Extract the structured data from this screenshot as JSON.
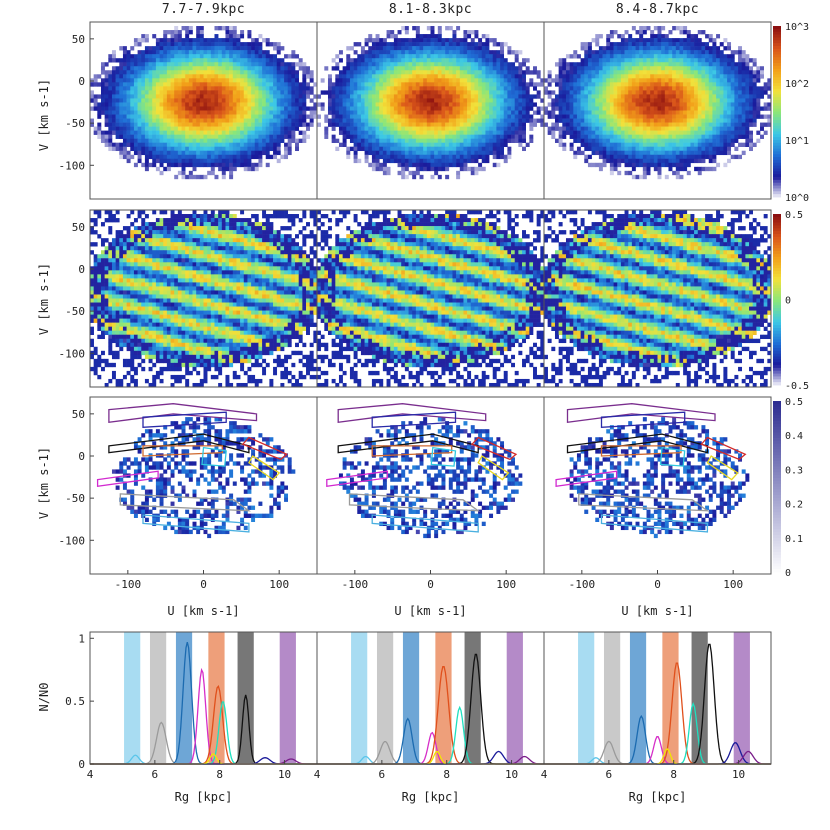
{
  "figure": {
    "column_titles": [
      "7.7-7.9kpc",
      "8.1-8.3kpc",
      "8.4-8.7kpc"
    ],
    "y_axis_label": "V [km s-1]",
    "x_axis_label_uv": "U [km s-1]",
    "x_axis_label_bottom": "Rg [kpc]",
    "y_axis_label_bottom": "N/N0"
  },
  "chart_data": [
    {
      "type": "heatmap",
      "panel": "density",
      "xlim": [
        -150,
        150
      ],
      "ylim": [
        -140,
        70
      ],
      "yticks": [
        -100,
        -50,
        0,
        50
      ],
      "colorbar": {
        "scale": "log",
        "range": [
          1,
          1500
        ],
        "ticks": [
          "10^0",
          "10^1",
          "10^2",
          "10^3"
        ]
      },
      "colormap": [
        "#ffffff",
        "#1a1a9c",
        "#1f6fd6",
        "#3cc8e6",
        "#8ae67a",
        "#f2e13a",
        "#f2a019",
        "#d9541a",
        "#8c1010"
      ],
      "columns": [
        "7.7-7.9kpc",
        "8.1-8.3kpc",
        "8.4-8.7kpc"
      ]
    },
    {
      "type": "heatmap",
      "panel": "density contrast",
      "xlim": [
        -150,
        150
      ],
      "ylim": [
        -140,
        70
      ],
      "yticks": [
        -100,
        -50,
        0,
        50
      ],
      "colorbar": {
        "scale": "linear",
        "range": [
          -0.5,
          0.5
        ],
        "ticks": [
          "-0.5",
          "0",
          "0.5"
        ]
      }
    },
    {
      "type": "heatmap",
      "panel": "significance with ridge contours",
      "xlim": [
        -150,
        150
      ],
      "ylim": [
        -140,
        70
      ],
      "xticks": [
        -100,
        0,
        100
      ],
      "yticks": [
        -100,
        -50,
        0,
        50
      ],
      "colorbar": {
        "scale": "linear",
        "range": [
          0,
          0.5
        ],
        "ticks": [
          "0",
          "0.1",
          "0.2",
          "0.3",
          "0.4",
          "0.5"
        ]
      }
    },
    {
      "type": "line",
      "panel": "guiding radius distribution",
      "xlim": [
        4,
        11
      ],
      "ylim": [
        0,
        1.05
      ],
      "xticks": [
        4,
        6,
        8,
        10
      ],
      "yticks": [
        0,
        0.5,
        1
      ],
      "bands": [
        {
          "x": 5.3,
          "color": "#a8dcf2"
        },
        {
          "x": 6.1,
          "color": "#c9c9c9"
        },
        {
          "x": 6.9,
          "color": "#6ea6d6"
        },
        {
          "x": 7.9,
          "color": "#ee9f7a"
        },
        {
          "x": 8.8,
          "color": "#777777"
        },
        {
          "x": 10.1,
          "color": "#b48ac8"
        }
      ],
      "series_colors": [
        "#5bc6ea",
        "#9a9a9a",
        "#1c6bb0",
        "#d62ec8",
        "#e0501c",
        "#1ee0c0",
        "#111111",
        "#1a1a9a",
        "#7a1e8a",
        "#f2e600"
      ],
      "panels": [
        {
          "series": [
            {
              "peak_x": 5.4,
              "peak_y": 0.07,
              "width": 0.12
            },
            {
              "peak_x": 6.2,
              "peak_y": 0.33,
              "width": 0.15
            },
            {
              "peak_x": 7.0,
              "peak_y": 0.97,
              "width": 0.13
            },
            {
              "peak_x": 7.45,
              "peak_y": 0.75,
              "width": 0.12
            },
            {
              "peak_x": 7.95,
              "peak_y": 0.62,
              "width": 0.14
            },
            {
              "peak_x": 8.1,
              "peak_y": 0.5,
              "width": 0.12
            },
            {
              "peak_x": 8.8,
              "peak_y": 0.55,
              "width": 0.1
            },
            {
              "peak_x": 9.4,
              "peak_y": 0.05,
              "width": 0.15
            },
            {
              "peak_x": 10.2,
              "peak_y": 0.04,
              "width": 0.15
            },
            {
              "peak_x": 7.8,
              "peak_y": 0.08,
              "width": 0.1
            }
          ]
        },
        {
          "series": [
            {
              "peak_x": 5.5,
              "peak_y": 0.06,
              "width": 0.12
            },
            {
              "peak_x": 6.1,
              "peak_y": 0.18,
              "width": 0.15
            },
            {
              "peak_x": 6.8,
              "peak_y": 0.36,
              "width": 0.13
            },
            {
              "peak_x": 7.55,
              "peak_y": 0.25,
              "width": 0.12
            },
            {
              "peak_x": 7.9,
              "peak_y": 0.78,
              "width": 0.16
            },
            {
              "peak_x": 8.4,
              "peak_y": 0.45,
              "width": 0.12
            },
            {
              "peak_x": 8.9,
              "peak_y": 0.88,
              "width": 0.15
            },
            {
              "peak_x": 9.6,
              "peak_y": 0.1,
              "width": 0.15
            },
            {
              "peak_x": 10.4,
              "peak_y": 0.06,
              "width": 0.15
            },
            {
              "peak_x": 7.7,
              "peak_y": 0.1,
              "width": 0.1
            }
          ]
        },
        {
          "series": [
            {
              "peak_x": 5.6,
              "peak_y": 0.05,
              "width": 0.12
            },
            {
              "peak_x": 6.0,
              "peak_y": 0.18,
              "width": 0.15
            },
            {
              "peak_x": 7.0,
              "peak_y": 0.38,
              "width": 0.13
            },
            {
              "peak_x": 7.5,
              "peak_y": 0.22,
              "width": 0.12
            },
            {
              "peak_x": 8.1,
              "peak_y": 0.81,
              "width": 0.15
            },
            {
              "peak_x": 8.6,
              "peak_y": 0.48,
              "width": 0.12
            },
            {
              "peak_x": 9.1,
              "peak_y": 0.96,
              "width": 0.15
            },
            {
              "peak_x": 9.9,
              "peak_y": 0.17,
              "width": 0.15
            },
            {
              "peak_x": 10.3,
              "peak_y": 0.1,
              "width": 0.15
            },
            {
              "peak_x": 7.8,
              "peak_y": 0.12,
              "width": 0.1
            }
          ]
        }
      ]
    }
  ]
}
